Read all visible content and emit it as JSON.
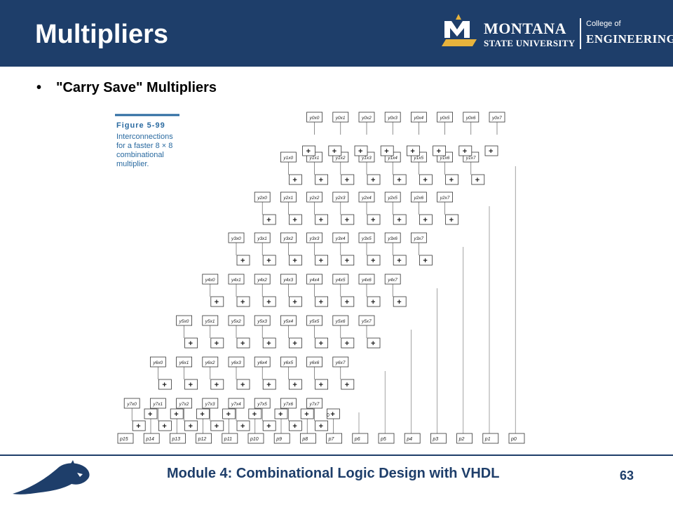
{
  "header": {
    "title": "Multipliers",
    "logo": {
      "line1": "MONTANA",
      "line2": "STATE UNIVERSITY",
      "college_of": "College of",
      "engineering": "ENGINEERING"
    }
  },
  "content": {
    "bullet": "•",
    "bullet_text": "\"Carry Save\" Multipliers"
  },
  "figure": {
    "caption_title": "Figure 5-99",
    "caption_lines": [
      "Interconnections",
      "for a faster 8 × 8",
      "combinational",
      "multiplier."
    ],
    "zero_label": "0",
    "plus_symbol": "+",
    "products": [
      "p15",
      "p14",
      "p13",
      "p12",
      "p11",
      "p10",
      "p9",
      "p8",
      "p7",
      "p6",
      "p5",
      "p4",
      "p3",
      "p2",
      "p1",
      "p0"
    ]
  },
  "footer": {
    "text": "Module 4: Combinational Logic Design with VHDL",
    "page": "63"
  },
  "colors": {
    "navy": "#1e3e6a",
    "gold": "#e8b33c",
    "caption_blue": "#2a6aa0"
  }
}
